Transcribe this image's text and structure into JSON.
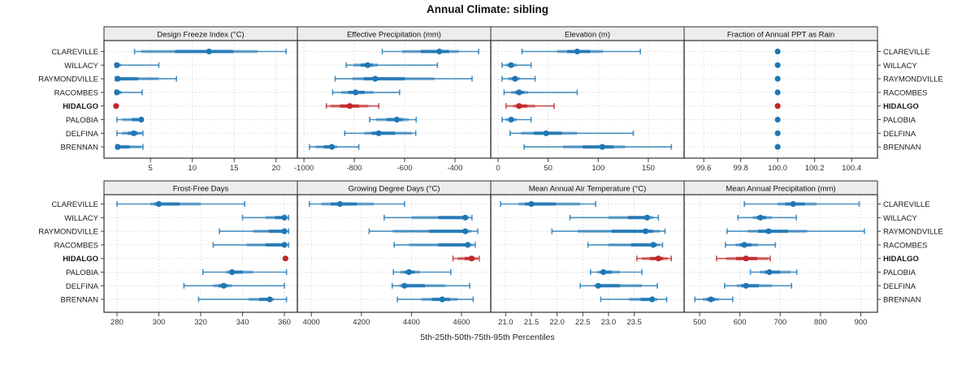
{
  "colors": {
    "blue": "#1f77b4",
    "red": "#c0272b",
    "strip_bg": "#ececec",
    "grid": "#cfcfcf",
    "border": "#2f2f2f",
    "tick": "#444444",
    "label": "#1a1a1a"
  },
  "chart_data": {
    "type": "dotplot",
    "title": "Annual Climate: sibling",
    "caption": "5th-25th-50th-75th-95th Percentiles",
    "percentiles": [
      "5th",
      "25th",
      "50th",
      "75th",
      "95th"
    ],
    "sites": [
      "CLAREVILLE",
      "WILLACY",
      "RAYMONDVILLE",
      "RACOMBES",
      "HIDALGO",
      "PALOBIA",
      "DELFINA",
      "BRENNAN"
    ],
    "highlight_site": "HIDALGO",
    "panels": [
      {
        "id": "design-freeze-index",
        "title": "Design Freeze Index (°C)",
        "grid_row": 0,
        "grid_col": 0,
        "xlim": [
          -0.55,
          22.55
        ],
        "ticks": [
          5,
          10,
          15,
          20
        ],
        "tick_labels": [
          "5",
          "10",
          "15",
          "20"
        ],
        "data": {
          "CLAREVILLE": [
            3.1,
            3.9,
            12.0,
            17.8,
            21.2
          ],
          "WILLACY": [
            0.8,
            0.9,
            1.0,
            1.5,
            6.0
          ],
          "RAYMONDVILLE": [
            0.8,
            1.0,
            1.1,
            6.0,
            8.1
          ],
          "RACOMBES": [
            0.8,
            0.9,
            1.0,
            1.6,
            4.0
          ],
          "HIDALGO": [
            0.9,
            0.9,
            0.9,
            0.9,
            0.9
          ],
          "PALOBIA": [
            1.0,
            1.6,
            3.9,
            4.0,
            4.0
          ],
          "DELFINA": [
            1.0,
            1.6,
            3.0,
            4.0,
            4.1
          ],
          "BRENNAN": [
            0.9,
            1.0,
            1.1,
            3.9,
            4.1
          ]
        }
      },
      {
        "id": "effective-precipitation",
        "title": "Effective Precipitation (mm)",
        "grid_row": 0,
        "grid_col": 1,
        "xlim": [
          -1026,
          -258
        ],
        "ticks": [
          -1000,
          -800,
          -600,
          -400
        ],
        "tick_labels": [
          "-1000",
          "-800",
          "-600",
          "-400"
        ],
        "data": {
          "CLAREVILLE": [
            -689,
            -610,
            -462,
            -385,
            -306
          ],
          "WILLACY": [
            -832,
            -803,
            -747,
            -706,
            -470
          ],
          "RAYMONDVILLE": [
            -876,
            -808,
            -717,
            -481,
            -332
          ],
          "RACOMBES": [
            -886,
            -852,
            -795,
            -723,
            -620
          ],
          "HIDALGO": [
            -911,
            -895,
            -818,
            -744,
            -703
          ],
          "PALOBIA": [
            -739,
            -712,
            -631,
            -583,
            -554
          ],
          "DELFINA": [
            -838,
            -760,
            -703,
            -572,
            -556
          ],
          "BRENNAN": [
            -978,
            -954,
            -889,
            -868,
            -782
          ]
        }
      },
      {
        "id": "elevation",
        "title": "Elevation (m)",
        "grid_row": 0,
        "grid_col": 2,
        "xlim": [
          -7.3,
          185.7
        ],
        "ticks": [
          0,
          50,
          100,
          150
        ],
        "tick_labels": [
          "0",
          "50",
          "100",
          "150"
        ],
        "data": {
          "CLAREVILLE": [
            24,
            59,
            79,
            105,
            142
          ],
          "WILLACY": [
            4,
            8,
            13,
            19,
            33
          ],
          "RAYMONDVILLE": [
            4,
            10,
            17,
            22,
            37
          ],
          "RACOMBES": [
            6,
            13,
            21,
            30,
            79
          ],
          "HIDALGO": [
            8,
            15,
            21,
            37,
            56
          ],
          "PALOBIA": [
            4,
            8,
            13,
            19,
            33
          ],
          "DELFINA": [
            12,
            23,
            48,
            79,
            135
          ],
          "BRENNAN": [
            26,
            65,
            104,
            127,
            173
          ]
        }
      },
      {
        "id": "fraction-annual-ppt-as-rain",
        "title": "Fraction of Annual PPT as Rain",
        "grid_row": 0,
        "grid_col": 3,
        "xlim": [
          99.494,
          100.54
        ],
        "ticks": [
          99.6,
          99.8,
          100.0,
          100.2,
          100.4
        ],
        "tick_labels": [
          "99.6",
          "99.8",
          "100.0",
          "100.2",
          "100.4"
        ],
        "data": {
          "CLAREVILLE": [
            100,
            100,
            100,
            100,
            100
          ],
          "WILLACY": [
            100,
            100,
            100,
            100,
            100
          ],
          "RAYMONDVILLE": [
            100,
            100,
            100,
            100,
            100
          ],
          "RACOMBES": [
            100,
            100,
            100,
            100,
            100
          ],
          "HIDALGO": [
            100,
            100,
            100,
            100,
            100
          ],
          "PALOBIA": [
            100,
            100,
            100,
            100,
            100
          ],
          "DELFINA": [
            100,
            100,
            100,
            100,
            100
          ],
          "BRENNAN": [
            100,
            100,
            100,
            100,
            100
          ]
        }
      },
      {
        "id": "frost-free-days",
        "title": "Frost-Free Days",
        "grid_row": 1,
        "grid_col": 0,
        "xlim": [
          273.8,
          366.2
        ],
        "ticks": [
          280,
          300,
          320,
          340,
          360
        ],
        "tick_labels": [
          "280",
          "300",
          "320",
          "340",
          "360"
        ],
        "data": {
          "CLAREVILLE": [
            280,
            296,
            300,
            320,
            341
          ],
          "WILLACY": [
            340,
            351,
            360,
            361,
            362
          ],
          "RAYMONDVILLE": [
            329,
            345,
            360,
            361,
            362
          ],
          "RACOMBES": [
            326,
            342,
            360,
            361,
            362
          ],
          "HIDALGO": [
            360.5,
            360.5,
            360.5,
            360.5,
            360.5
          ],
          "PALOBIA": [
            321,
            332,
            335,
            345,
            361
          ],
          "DELFINA": [
            312,
            326,
            331,
            335,
            360
          ],
          "BRENNAN": [
            319,
            343,
            353,
            355,
            361
          ]
        }
      },
      {
        "id": "growing-degree-days",
        "title": "Growing Degree Days (°C)",
        "grid_row": 1,
        "grid_col": 1,
        "xlim": [
          3944,
          4717
        ],
        "ticks": [
          4000,
          4200,
          4400,
          4600
        ],
        "tick_labels": [
          "4000",
          "4200",
          "4400",
          "4600"
        ],
        "data": {
          "CLAREVILLE": [
            3992,
            4040,
            4114,
            4250,
            4372
          ],
          "WILLACY": [
            4291,
            4400,
            4615,
            4630,
            4642
          ],
          "RAYMONDVILLE": [
            4231,
            4325,
            4615,
            4640,
            4665
          ],
          "RACOMBES": [
            4331,
            4390,
            4625,
            4645,
            4655
          ],
          "HIDALGO": [
            4566,
            4585,
            4640,
            4665,
            4671
          ],
          "PALOBIA": [
            4328,
            4355,
            4390,
            4435,
            4557
          ],
          "DELFINA": [
            4323,
            4352,
            4372,
            4536,
            4633
          ],
          "BRENNAN": [
            4344,
            4440,
            4523,
            4585,
            4647
          ]
        }
      },
      {
        "id": "mean-annual-air-temperature",
        "title": "Mean Annual Air Temperature (°C)",
        "grid_row": 1,
        "grid_col": 2,
        "xlim": [
          20.71,
          24.47
        ],
        "ticks": [
          21.0,
          21.5,
          22.0,
          22.5,
          23.0,
          23.5
        ],
        "tick_labels": [
          "21.0",
          "21.5",
          "22.0",
          "22.5",
          "23.0",
          "23.5"
        ],
        "data": {
          "CLAREVILLE": [
            20.9,
            21.25,
            21.5,
            22.45,
            22.75
          ],
          "WILLACY": [
            22.25,
            23.0,
            23.75,
            23.87,
            23.97
          ],
          "RAYMONDVILLE": [
            21.9,
            22.4,
            23.72,
            24.0,
            24.1
          ],
          "RACOMBES": [
            22.6,
            23.0,
            23.87,
            24.0,
            24.05
          ],
          "HIDALGO": [
            23.55,
            23.65,
            23.97,
            24.15,
            24.22
          ],
          "PALOBIA": [
            22.65,
            22.78,
            22.9,
            23.22,
            23.65
          ],
          "DELFINA": [
            22.45,
            22.72,
            22.8,
            23.65,
            23.95
          ],
          "BRENNAN": [
            22.85,
            23.4,
            23.85,
            23.95,
            24.13
          ]
        }
      },
      {
        "id": "mean-annual-precipitation",
        "title": "Mean Annual Precipitation (mm)",
        "grid_row": 1,
        "grid_col": 3,
        "xlim": [
          461.5,
          941.5
        ],
        "ticks": [
          500,
          600,
          700,
          800,
          900
        ],
        "tick_labels": [
          "500",
          "600",
          "700",
          "800",
          "900"
        ],
        "data": {
          "CLAREVILLE": [
            611,
            693,
            732,
            790,
            896
          ],
          "WILLACY": [
            595,
            632,
            651,
            679,
            740
          ],
          "RAYMONDVILLE": [
            568,
            619,
            671,
            767,
            909
          ],
          "RACOMBES": [
            564,
            589,
            611,
            646,
            688
          ],
          "HIDALGO": [
            542,
            565,
            615,
            671,
            675
          ],
          "PALOBIA": [
            626,
            649,
            673,
            726,
            741
          ],
          "DELFINA": [
            562,
            592,
            615,
            679,
            728
          ],
          "BRENNAN": [
            488,
            508,
            528,
            548,
            582
          ]
        }
      }
    ]
  }
}
